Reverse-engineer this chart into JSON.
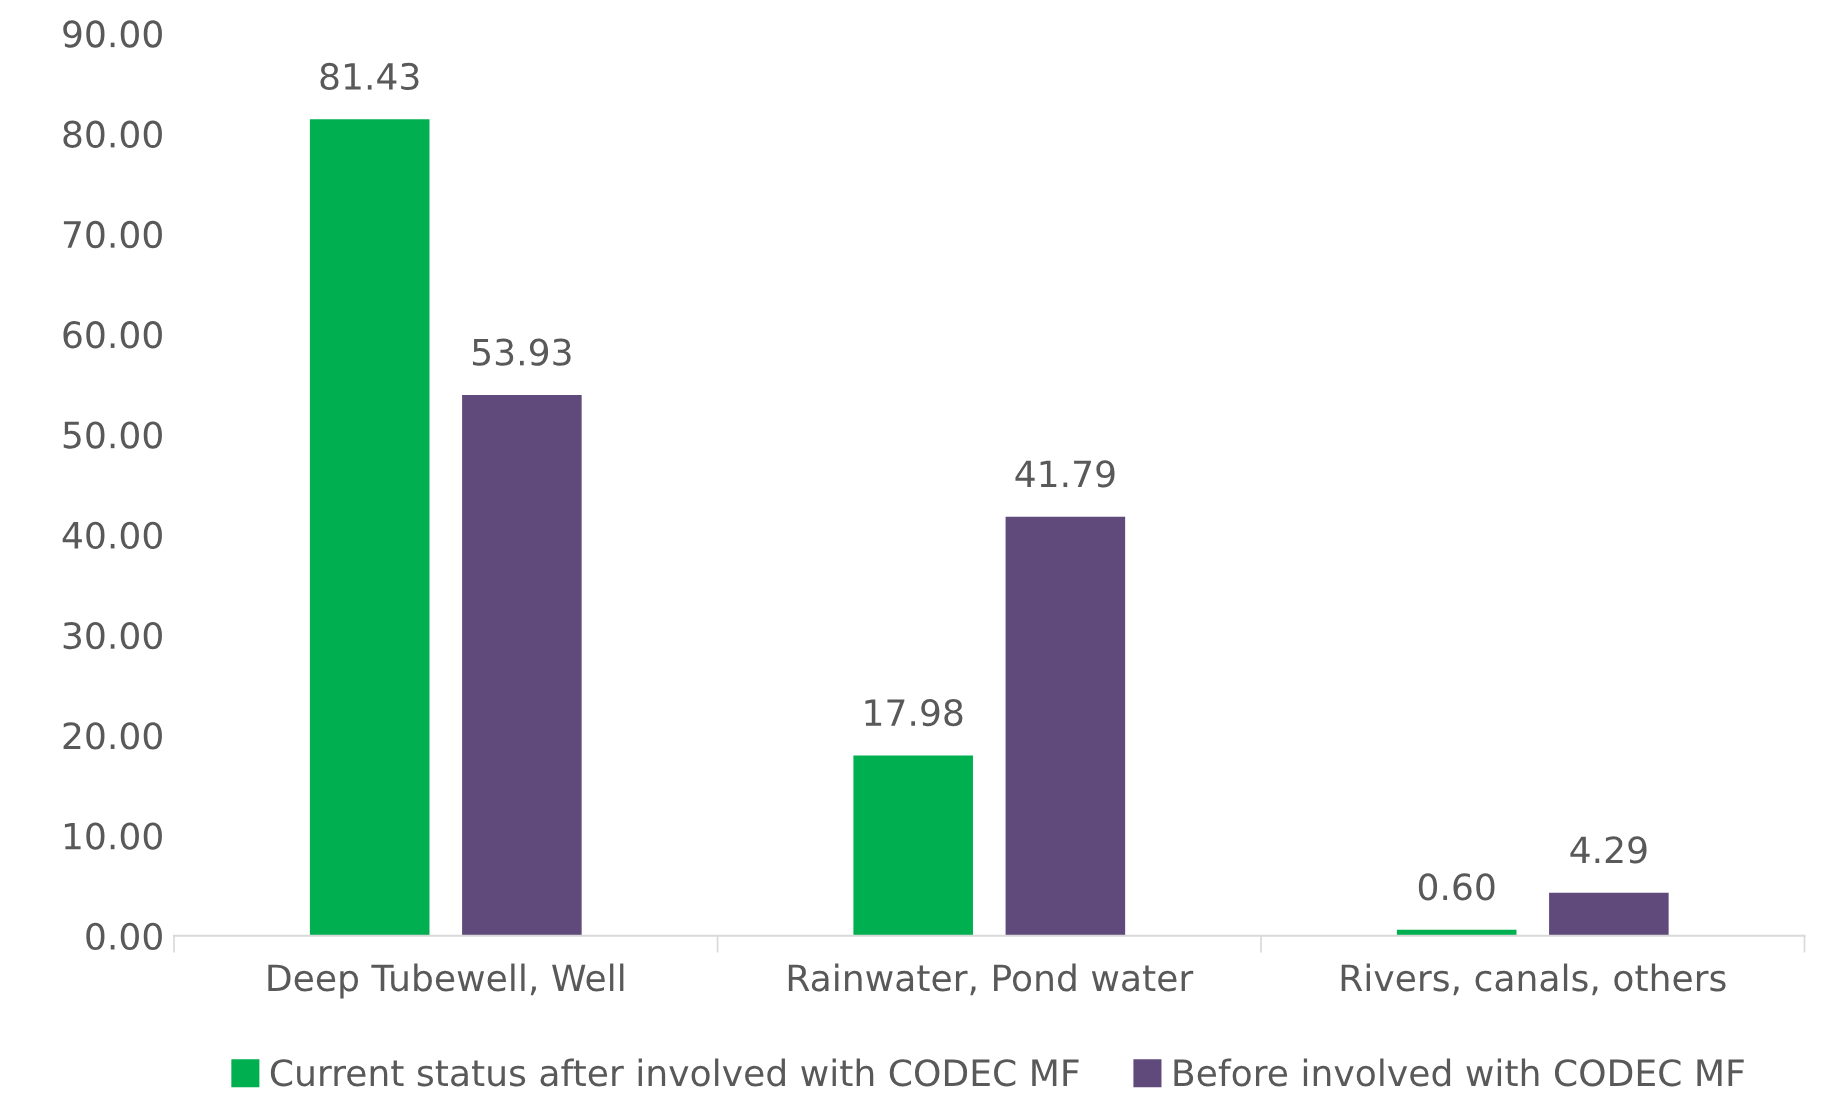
{
  "chart_data": {
    "type": "bar",
    "categories": [
      "Deep Tubewell, Well",
      "Rainwater, Pond water",
      "Rivers, canals, others"
    ],
    "series": [
      {
        "name": "Current status after involved with CODEC MF",
        "color": "#00b050",
        "values": [
          81.43,
          17.98,
          0.6
        ],
        "value_labels": [
          "81.43",
          "17.98",
          "0.60"
        ]
      },
      {
        "name": "Before involved with CODEC MF",
        "color": "#604a7b",
        "values": [
          53.93,
          41.79,
          4.29
        ],
        "value_labels": [
          "53.93",
          "41.79",
          "4.29"
        ]
      }
    ],
    "ylim": [
      0,
      90
    ],
    "yticks": [
      {
        "value": 0,
        "label": "0.00"
      },
      {
        "value": 10,
        "label": "10.00"
      },
      {
        "value": 20,
        "label": "20.00"
      },
      {
        "value": 30,
        "label": "30.00"
      },
      {
        "value": 40,
        "label": "40.00"
      },
      {
        "value": 50,
        "label": "50.00"
      },
      {
        "value": 60,
        "label": "60.00"
      },
      {
        "value": 70,
        "label": "70.00"
      },
      {
        "value": 80,
        "label": "80.00"
      },
      {
        "value": 90,
        "label": "90.00"
      }
    ],
    "grid": false,
    "legend": "bottom"
  }
}
